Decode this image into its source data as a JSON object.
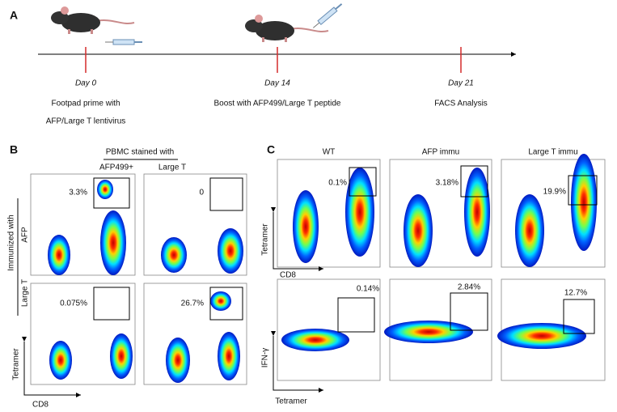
{
  "panel_a": {
    "label": "A",
    "timeline": [
      {
        "day": "Day 0",
        "desc": [
          "Footpad prime with",
          "AFP/Large T lentivirus"
        ]
      },
      {
        "day": "Day 14",
        "desc": [
          "Boost with AFP499/Large T peptide"
        ]
      },
      {
        "day": "Day 21",
        "desc": [
          "FACS Analysis"
        ]
      }
    ]
  },
  "panel_b": {
    "label": "B",
    "header": "PBMC stained with",
    "columns": [
      "AFP499+",
      "Large T"
    ],
    "row_group": "Immunized with",
    "rows": [
      "AFP",
      "Large T"
    ],
    "gates": [
      [
        "3.3%",
        "0"
      ],
      [
        "0.075%",
        "26.7%"
      ]
    ],
    "x_axis": "CD8",
    "y_axis": "Tetramer"
  },
  "panel_c": {
    "label": "C",
    "columns": [
      "WT",
      "AFP immu",
      "Large T immu"
    ],
    "gates_top": [
      "0.1%",
      "3.18%",
      "19.9%"
    ],
    "gates_bottom": [
      "0.14%",
      "2.84%",
      "12.7%"
    ],
    "top_x_axis": "CD8",
    "top_y_axis": "Tetramer",
    "bottom_x_axis": "Tetramer",
    "bottom_y_axis": "IFN-γ"
  }
}
